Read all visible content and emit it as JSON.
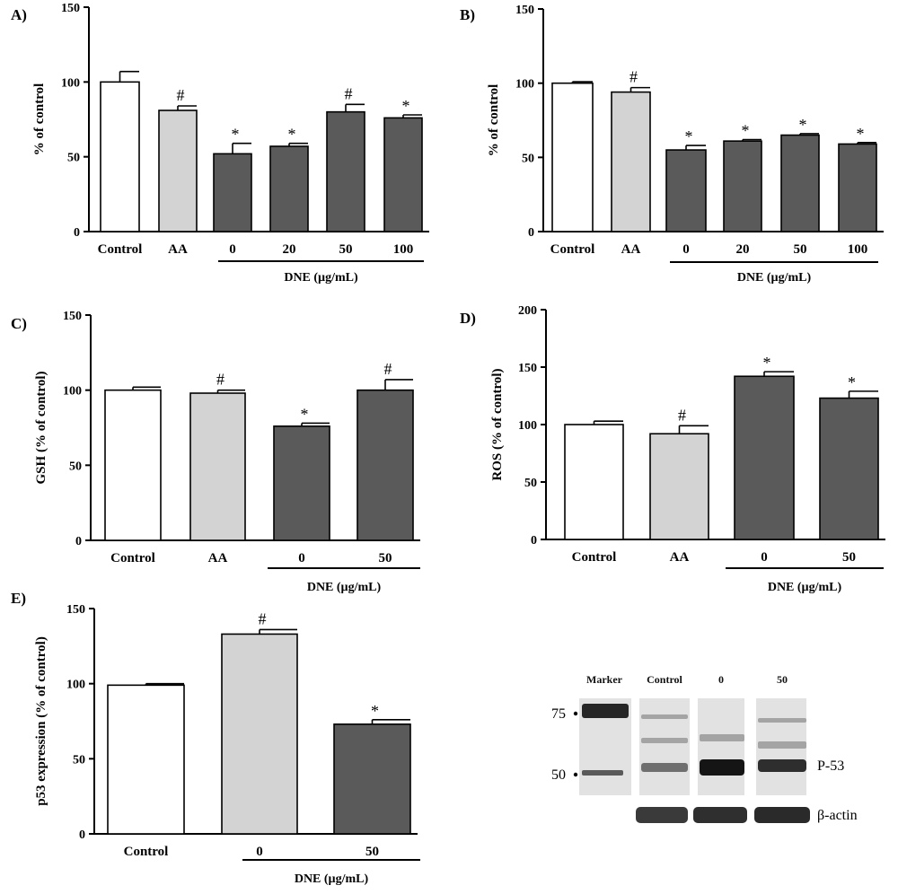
{
  "colors": {
    "control": "#ffffff",
    "aa": "#d3d3d3",
    "dne": "#5a5a5a"
  },
  "chart_data": [
    {
      "panel": "A)",
      "type": "bar",
      "ylabel": "% of control",
      "ylim": [
        0,
        150
      ],
      "yticks": [
        0,
        50,
        100,
        150
      ],
      "categories": [
        "Control",
        "AA",
        "0",
        "20",
        "50",
        "100"
      ],
      "values": [
        100,
        81,
        52,
        57,
        80,
        76
      ],
      "errors": [
        7,
        3,
        7,
        2,
        5,
        2
      ],
      "groups": [
        "control",
        "aa",
        "dne",
        "dne",
        "dne",
        "dne"
      ],
      "significance": [
        "",
        "#",
        "*",
        "*",
        "#",
        "*"
      ],
      "group_label": "DNE (µg/mL)",
      "group_span": [
        2,
        5
      ]
    },
    {
      "panel": "B)",
      "type": "bar",
      "ylabel": "% of control",
      "ylim": [
        0,
        150
      ],
      "yticks": [
        0,
        50,
        100,
        150
      ],
      "categories": [
        "Control",
        "AA",
        "0",
        "20",
        "50",
        "100"
      ],
      "values": [
        100,
        94,
        55,
        61,
        65,
        59
      ],
      "errors": [
        1,
        3,
        3,
        1,
        1,
        1
      ],
      "groups": [
        "control",
        "aa",
        "dne",
        "dne",
        "dne",
        "dne"
      ],
      "significance": [
        "",
        "#",
        "*",
        "*",
        "*",
        "*"
      ],
      "group_label": "DNE (µg/mL)",
      "group_span": [
        2,
        5
      ]
    },
    {
      "panel": "C)",
      "type": "bar",
      "ylabel": "GSH (% of control)",
      "ylim": [
        0,
        150
      ],
      "yticks": [
        0,
        50,
        100,
        150
      ],
      "categories": [
        "Control",
        "AA",
        "0",
        "50"
      ],
      "values": [
        100,
        98,
        76,
        100
      ],
      "errors": [
        2,
        2,
        2,
        7
      ],
      "groups": [
        "control",
        "aa",
        "dne",
        "dne"
      ],
      "significance": [
        "",
        "#",
        "*",
        "#"
      ],
      "group_label": "DNE (µg/mL)",
      "group_span": [
        2,
        3
      ]
    },
    {
      "panel": "D)",
      "type": "bar",
      "ylabel": "ROS (% of control)",
      "ylim": [
        0,
        200
      ],
      "yticks": [
        0,
        50,
        100,
        150,
        200
      ],
      "categories": [
        "Control",
        "AA",
        "0",
        "50"
      ],
      "values": [
        100,
        92,
        142,
        123
      ],
      "errors": [
        3,
        7,
        4,
        6
      ],
      "groups": [
        "control",
        "aa",
        "dne",
        "dne"
      ],
      "significance": [
        "",
        "#",
        "*",
        "*"
      ],
      "group_label": "DNE (µg/mL)",
      "group_span": [
        2,
        3
      ]
    },
    {
      "panel": "E)",
      "type": "bar",
      "ylabel": "p53 expression (% of control)",
      "ylim": [
        0,
        150
      ],
      "yticks": [
        0,
        50,
        100,
        150
      ],
      "categories": [
        "Control",
        "0",
        "50"
      ],
      "values": [
        99,
        133,
        73
      ],
      "errors": [
        1,
        3,
        3
      ],
      "groups": [
        "control",
        "aa",
        "dne"
      ],
      "significance": [
        "",
        "#",
        "*"
      ],
      "group_label": "DNE (µg/mL)",
      "group_span": [
        1,
        2
      ]
    }
  ],
  "blot": {
    "lane_labels": [
      "Marker",
      "Control",
      "0",
      "50"
    ],
    "marker_sizes": [
      "75",
      "50"
    ],
    "band_labels": [
      "P-53",
      "β-actin"
    ]
  }
}
